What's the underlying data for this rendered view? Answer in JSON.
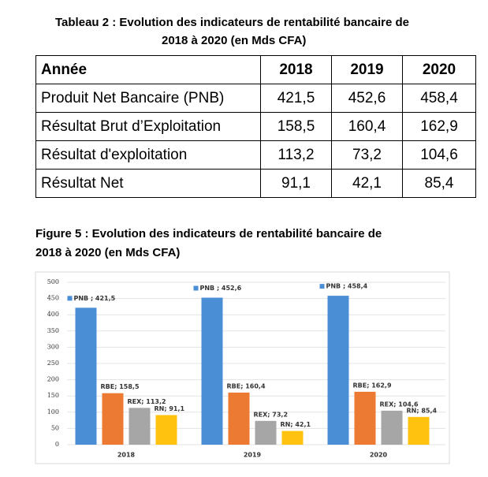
{
  "table_caption": [
    "Tableau 2 : Evolution des indicateurs de rentabilité bancaire de",
    "2018 à 2020 (en Mds CFA)"
  ],
  "table": {
    "header": [
      "Année",
      "2018",
      "2019",
      "2020"
    ],
    "rows": [
      [
        "Produit Net Bancaire (PNB)",
        "421,5",
        "452,6",
        "458,4"
      ],
      [
        "Résultat Brut d’Exploitation",
        "158,5",
        "160,4",
        "162,9"
      ],
      [
        "Résultat d'exploitation",
        "113,2",
        "73,2",
        "104,6"
      ],
      [
        "Résultat Net",
        "91,1",
        "42,1",
        "85,4"
      ]
    ]
  },
  "figure_caption": [
    "Figure 5 : Evolution des indicateurs de rentabilité bancaire de",
    "2018 à 2020 (en Mds CFA)"
  ],
  "chart_data": {
    "type": "bar",
    "categories": [
      "2018",
      "2019",
      "2020"
    ],
    "series": [
      {
        "color": "#4a8fd6",
        "values": [
          421.5,
          452.6,
          458.4
        ],
        "value_labels": [
          "PNB ; 421,5",
          "PNB ; 452,6",
          "PNB ; 458,4"
        ]
      },
      {
        "color": "#ec7a32",
        "values": [
          158.5,
          160.4,
          162.9
        ],
        "value_labels": [
          "RBE; 158,5",
          "RBE; 160,4",
          "RBE; 162,9"
        ]
      },
      {
        "color": "#a6a6a6",
        "values": [
          113.2,
          73.2,
          104.6
        ],
        "value_labels": [
          "REX; 113,2",
          "REX; 73,2",
          "REX; 104,6"
        ]
      },
      {
        "color": "#ffc20e",
        "values": [
          91.1,
          42.1,
          85.4
        ],
        "value_labels": [
          "RN; 91,1",
          "RN; 42,1",
          "RN; 85,4"
        ]
      }
    ],
    "ylim": [
      0,
      500
    ],
    "yticks": [
      0,
      50,
      100,
      150,
      200,
      250,
      300,
      350,
      400,
      450,
      500
    ],
    "grid": true
  }
}
